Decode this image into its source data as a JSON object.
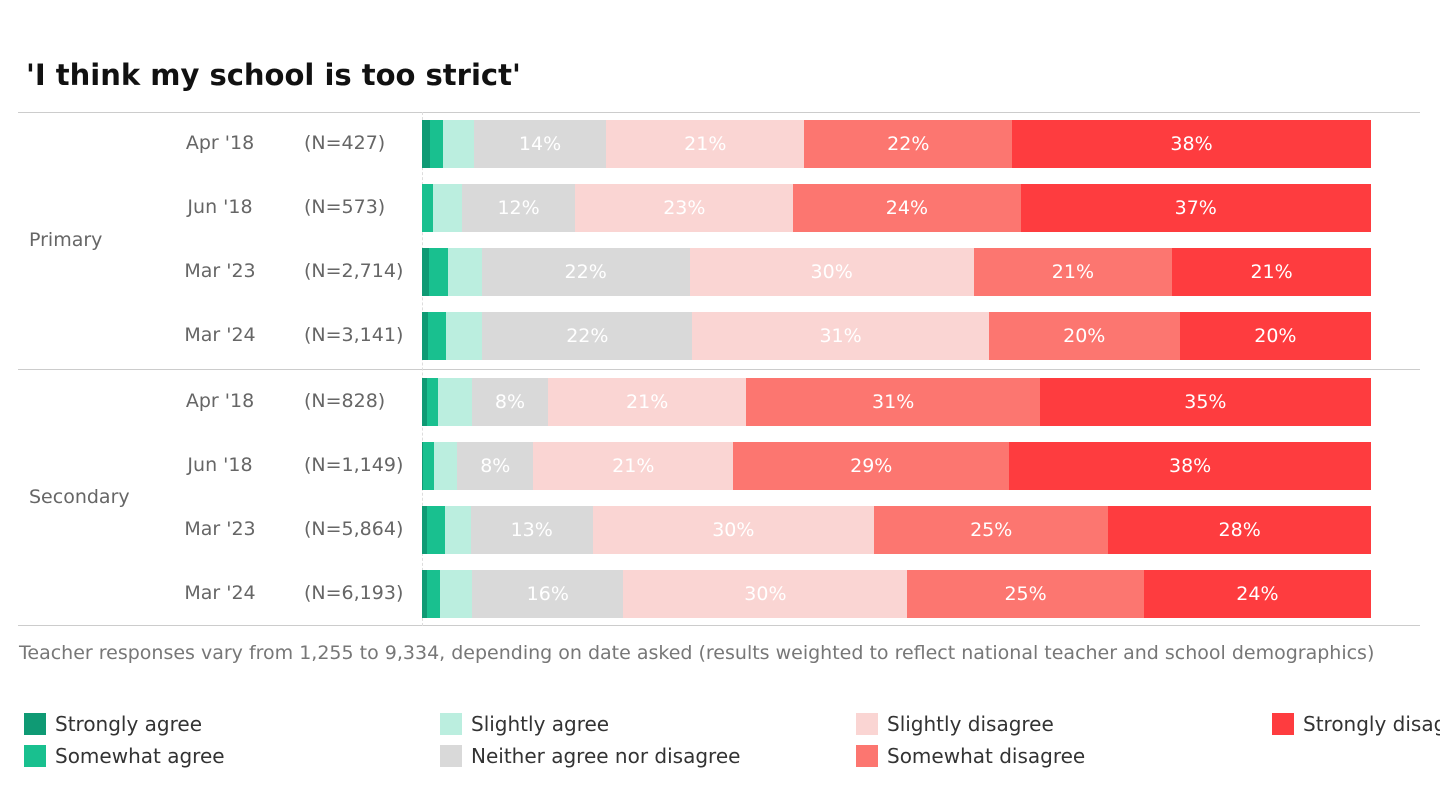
{
  "chart_data": {
    "type": "bar",
    "orientation": "horizontal",
    "stacked": true,
    "title": "'I think my school is too strict'",
    "note": "Teacher responses vary from 1,255 to 9,334, depending on date asked (results weighted to reflect national teacher and school demographics)",
    "series": [
      {
        "name": "Strongly agree",
        "color": "#0f9a74"
      },
      {
        "name": "Somewhat agree",
        "color": "#19c08f"
      },
      {
        "name": "Slightly agree",
        "color": "#bbeedf"
      },
      {
        "name": "Neither agree nor disagree",
        "color": "#d9d9d9"
      },
      {
        "name": "Slightly disagree",
        "color": "#fad5d3"
      },
      {
        "name": "Somewhat disagree",
        "color": "#fc7670"
      },
      {
        "name": "Strongly disagree",
        "color": "#fe3c3f"
      }
    ],
    "groups": [
      {
        "label": "Primary",
        "rows": [
          {
            "date": "Apr '18",
            "n": "(N=427)",
            "values": [
              0.8,
              1.4,
              3.3,
              14,
              21,
              22,
              38
            ]
          },
          {
            "date": "Jun '18",
            "n": "(N=573)",
            "values": [
              0,
              1.2,
              3,
              12,
              23,
              24,
              37
            ]
          },
          {
            "date": "Mar '23",
            "n": "(N=2,714)",
            "values": [
              0.7,
              2,
              3.6,
              22,
              30,
              21,
              21
            ]
          },
          {
            "date": "Mar '24",
            "n": "(N=3,141)",
            "values": [
              0.6,
              1.9,
              3.8,
              22,
              31,
              20,
              20
            ]
          }
        ]
      },
      {
        "label": "Secondary",
        "rows": [
          {
            "date": "Apr '18",
            "n": "(N=828)",
            "values": [
              0.5,
              1.2,
              3.6,
              8,
              21,
              31,
              35
            ]
          },
          {
            "date": "Jun '18",
            "n": "(N=1,149)",
            "values": [
              0.1,
              1.2,
              2.4,
              8,
              21,
              29,
              38
            ]
          },
          {
            "date": "Mar '23",
            "n": "(N=5,864)",
            "values": [
              0.5,
              2,
              2.7,
              13,
              30,
              25,
              28
            ]
          },
          {
            "date": "Mar '24",
            "n": "(N=6,193)",
            "values": [
              0.5,
              1.4,
              3.4,
              16,
              30,
              25,
              24
            ]
          }
        ]
      }
    ],
    "label_threshold": 5
  }
}
